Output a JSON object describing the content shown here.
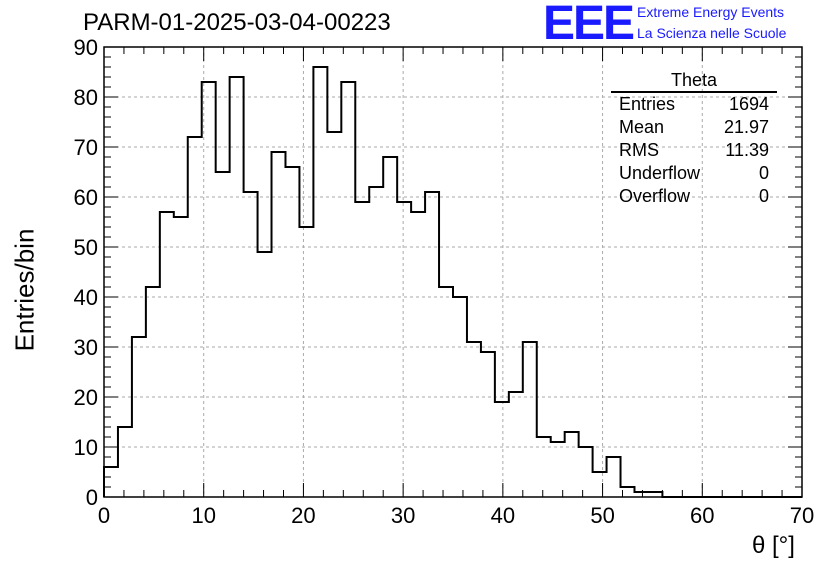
{
  "run_title": "PARM-01-2025-03-04-00223",
  "logo": {
    "mark": "EEE",
    "line1": "Extreme Energy Events",
    "line2": "La Scienza nelle Scuole",
    "color": "#1a1aff"
  },
  "stats_box": {
    "title": "Theta",
    "rows": [
      {
        "label": "Entries",
        "value": "1694"
      },
      {
        "label": "Mean",
        "value": "21.97"
      },
      {
        "label": "RMS",
        "value": "11.39"
      },
      {
        "label": "Underflow",
        "value": "0"
      },
      {
        "label": "Overflow",
        "value": "0"
      }
    ]
  },
  "chart_data": {
    "type": "bar",
    "style": "step-histogram",
    "xlabel": "θ [°]",
    "ylabel": "Entries/bin",
    "xlim": [
      0,
      70
    ],
    "ylim": [
      0,
      90
    ],
    "bin_width": 1.4,
    "grid": true,
    "x_ticks": [
      0,
      10,
      20,
      30,
      40,
      50,
      60,
      70
    ],
    "y_ticks": [
      0,
      10,
      20,
      30,
      40,
      50,
      60,
      70,
      80,
      90
    ],
    "values": [
      6,
      14,
      32,
      42,
      57,
      56,
      72,
      83,
      65,
      84,
      61,
      49,
      69,
      66,
      54,
      86,
      73,
      83,
      59,
      62,
      68,
      59,
      57,
      61,
      42,
      40,
      31,
      29,
      19,
      21,
      31,
      12,
      11,
      13,
      10,
      5,
      8,
      2,
      1,
      1,
      0,
      0,
      0,
      0,
      0,
      0,
      0,
      0,
      0,
      0
    ]
  }
}
